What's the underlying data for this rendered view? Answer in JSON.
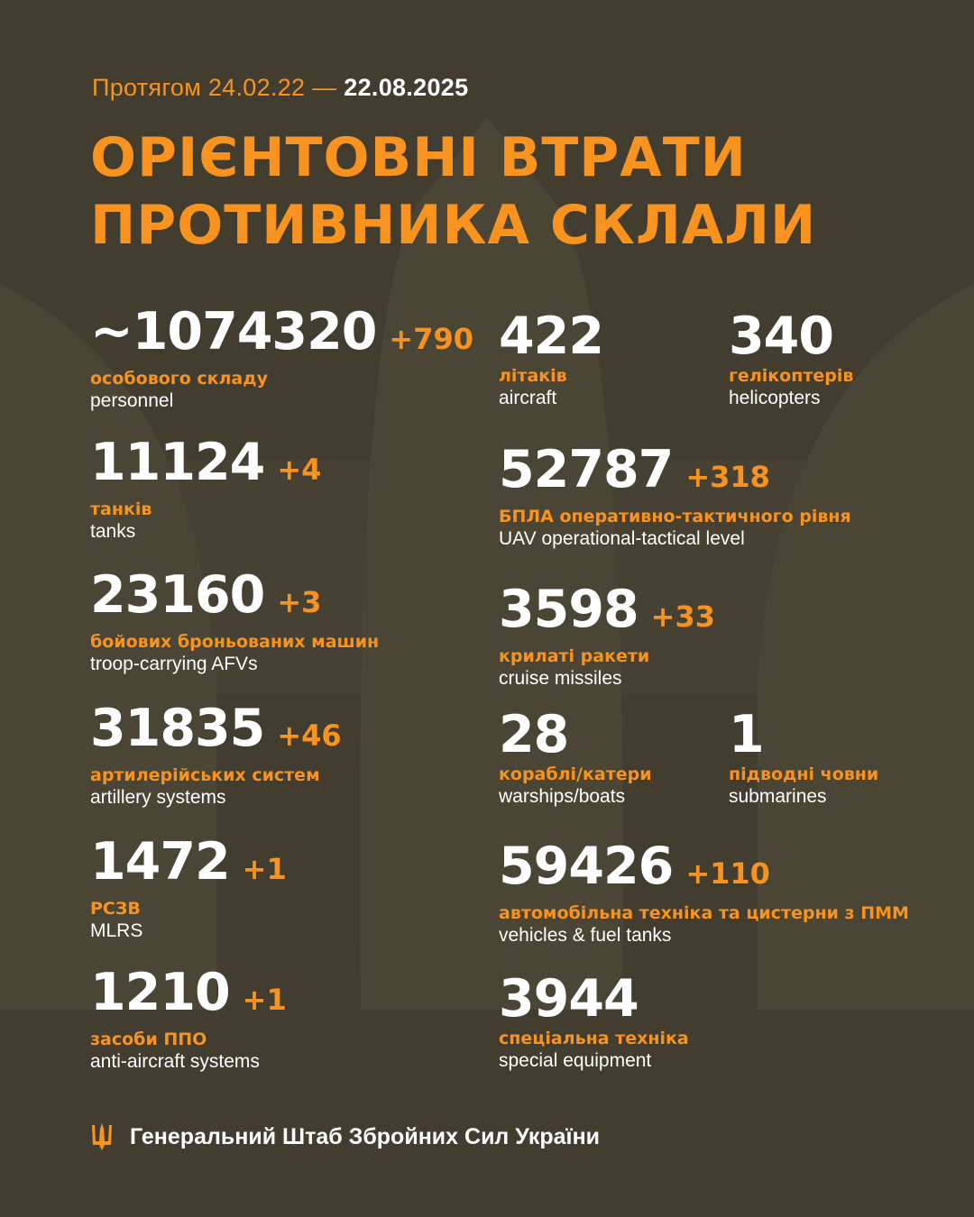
{
  "header": {
    "period_prefix": "Протягом 24.02.22 —",
    "period_end": "22.08.2025",
    "title_line1": "ОРІЄНТОВНІ ВТРАТИ",
    "title_line2": "ПРОТИВНИКА СКЛАЛИ"
  },
  "colors": {
    "background": "#433d30",
    "accent": "#f7931e",
    "text": "#ffffff"
  },
  "stats": [
    {
      "value": "~1074320",
      "delta": "+790",
      "ua": "особового складу",
      "en": "personnel"
    },
    {
      "value": "11124",
      "delta": "+4",
      "ua": "танків",
      "en": "tanks"
    },
    {
      "value": "23160",
      "delta": "+3",
      "ua": "бойових броньованих машин",
      "en": "troop-carrying AFVs"
    },
    {
      "value": "31835",
      "delta": "+46",
      "ua": "артилерійських систем",
      "en": "artillery systems"
    },
    {
      "value": "1472",
      "delta": "+1",
      "ua": "РСЗВ",
      "en": "MLRS"
    },
    {
      "value": "1210",
      "delta": "+1",
      "ua": "засоби ППО",
      "en": "anti-aircraft systems"
    },
    {
      "value": "422",
      "delta": "",
      "ua": "літаків",
      "en": "aircraft"
    },
    {
      "value": "340",
      "delta": "",
      "ua": "гелікоптерів",
      "en": "helicopters"
    },
    {
      "value": "52787",
      "delta": "+318",
      "ua": "БПЛА оперативно-тактичного рівня",
      "en": "UAV operational-tactical level"
    },
    {
      "value": "3598",
      "delta": "+33",
      "ua": "крилаті ракети",
      "en": "cruise missiles"
    },
    {
      "value": "28",
      "delta": "",
      "ua": "кораблі/катери",
      "en": "warships/boats"
    },
    {
      "value": "1",
      "delta": "",
      "ua": "підводні човни",
      "en": "submarines"
    },
    {
      "value": "59426",
      "delta": "+110",
      "ua": "автомобільна техніка та цистерни з ПММ",
      "en": "vehicles & fuel tanks"
    },
    {
      "value": "3944",
      "delta": "",
      "ua": "спеціальна техніка",
      "en": "special equipment"
    }
  ],
  "footer": {
    "icon": "trident-icon",
    "text": "Генеральний Штаб Збройних Сил України"
  }
}
